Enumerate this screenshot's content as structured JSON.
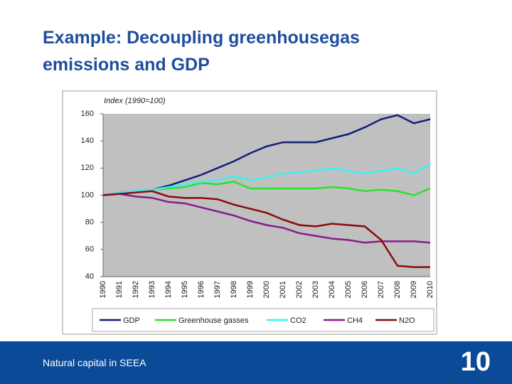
{
  "slide": {
    "title": "Example: Decoupling greenhousegas emissions and GDP",
    "footer": "Natural capital in SEEA",
    "page_number": "10"
  },
  "chart_data": {
    "type": "line",
    "y_label": "Index (1990=100)",
    "categories": [
      "1990",
      "1991",
      "1992",
      "1993",
      "1994",
      "1995",
      "1996",
      "1997",
      "1998",
      "1999",
      "2000",
      "2001",
      "2002",
      "2003",
      "2004",
      "2005",
      "2006",
      "2007",
      "2008",
      "2009",
      "2010"
    ],
    "ylim": [
      40,
      160
    ],
    "yticks": [
      40,
      60,
      80,
      100,
      120,
      140,
      160
    ],
    "series": [
      {
        "name": "GDP",
        "color": "#141e7a",
        "values": [
          100,
          102,
          103,
          104,
          107,
          111,
          115,
          120,
          125,
          131,
          136,
          139,
          139,
          139,
          142,
          145,
          150,
          156,
          159,
          153,
          156
        ]
      },
      {
        "name": "Greenhouse gasses",
        "color": "#2ee02e",
        "values": [
          100,
          101,
          102,
          104,
          105,
          106,
          109,
          108,
          110,
          105,
          105,
          105,
          105,
          105,
          106,
          105,
          103,
          104,
          103,
          100,
          105
        ]
      },
      {
        "name": "CO2",
        "color": "#3ef0f0",
        "values": [
          100,
          102,
          103,
          104,
          106,
          108,
          110,
          111,
          114,
          111,
          113,
          116,
          117,
          118,
          120,
          118,
          116,
          118,
          120,
          116,
          123
        ]
      },
      {
        "name": "CH4",
        "color": "#8a1a8a",
        "values": [
          100,
          101,
          99,
          98,
          95,
          94,
          91,
          88,
          85,
          81,
          78,
          76,
          72,
          70,
          68,
          67,
          65,
          66,
          66,
          66,
          65
        ]
      },
      {
        "name": "N2O",
        "color": "#8b0a0a",
        "values": [
          100,
          101,
          102,
          103,
          99,
          98,
          98,
          97,
          93,
          90,
          87,
          82,
          78,
          77,
          79,
          78,
          77,
          67,
          48,
          47,
          47
        ]
      }
    ]
  }
}
